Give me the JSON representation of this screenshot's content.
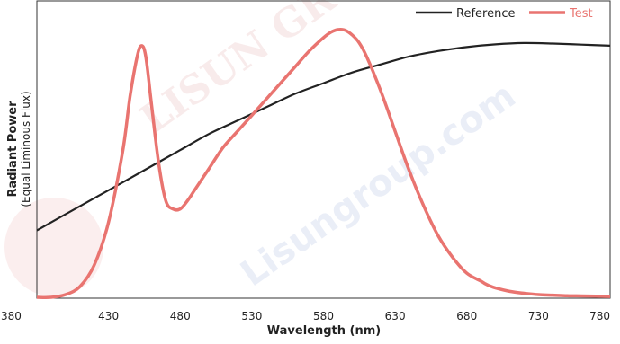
{
  "chart_data": {
    "type": "line",
    "xlabel": "Wavelength (nm)",
    "ylabel": "Radiant Power",
    "ylabel_sub": "(Equal Liminous Flux)",
    "xlim": [
      380,
      780
    ],
    "ylim": [
      0,
      1
    ],
    "xticks": [
      "380",
      "430",
      "480",
      "530",
      "580",
      "630",
      "680",
      "730",
      "780"
    ],
    "legend_position": "top-right",
    "grid": false,
    "watermark": [
      "Lisungroup.com",
      "LISUN GROUP"
    ],
    "series": [
      {
        "name": "Reference",
        "color": "#222222",
        "x": [
          380,
          400,
          420,
          440,
          460,
          480,
          500,
          520,
          540,
          560,
          580,
          600,
          620,
          640,
          660,
          680,
          700,
          720,
          740,
          760,
          780
        ],
        "y": [
          0.25,
          0.31,
          0.37,
          0.43,
          0.49,
          0.55,
          0.61,
          0.66,
          0.71,
          0.76,
          0.8,
          0.84,
          0.87,
          0.9,
          0.92,
          0.935,
          0.945,
          0.95,
          0.948,
          0.944,
          0.94
        ]
      },
      {
        "name": "Test",
        "color": "#e97470",
        "x": [
          380,
          390,
          400,
          410,
          420,
          430,
          440,
          445,
          450,
          453,
          456,
          460,
          465,
          470,
          475,
          480,
          485,
          490,
          500,
          510,
          520,
          530,
          540,
          550,
          560,
          570,
          580,
          585,
          590,
          595,
          600,
          605,
          610,
          620,
          630,
          640,
          650,
          660,
          670,
          680,
          690,
          693,
          695,
          700,
          710,
          720,
          730,
          740,
          750,
          760,
          770,
          780
        ],
        "y": [
          0.0,
          0.0,
          0.01,
          0.04,
          0.12,
          0.28,
          0.55,
          0.75,
          0.9,
          0.94,
          0.9,
          0.72,
          0.5,
          0.36,
          0.33,
          0.33,
          0.36,
          0.4,
          0.48,
          0.56,
          0.62,
          0.68,
          0.74,
          0.8,
          0.86,
          0.92,
          0.97,
          0.99,
          1.0,
          0.998,
          0.98,
          0.95,
          0.9,
          0.77,
          0.62,
          0.47,
          0.34,
          0.23,
          0.15,
          0.09,
          0.06,
          0.05,
          0.045,
          0.035,
          0.022,
          0.015,
          0.01,
          0.008,
          0.006,
          0.005,
          0.004,
          0.003
        ]
      }
    ]
  }
}
